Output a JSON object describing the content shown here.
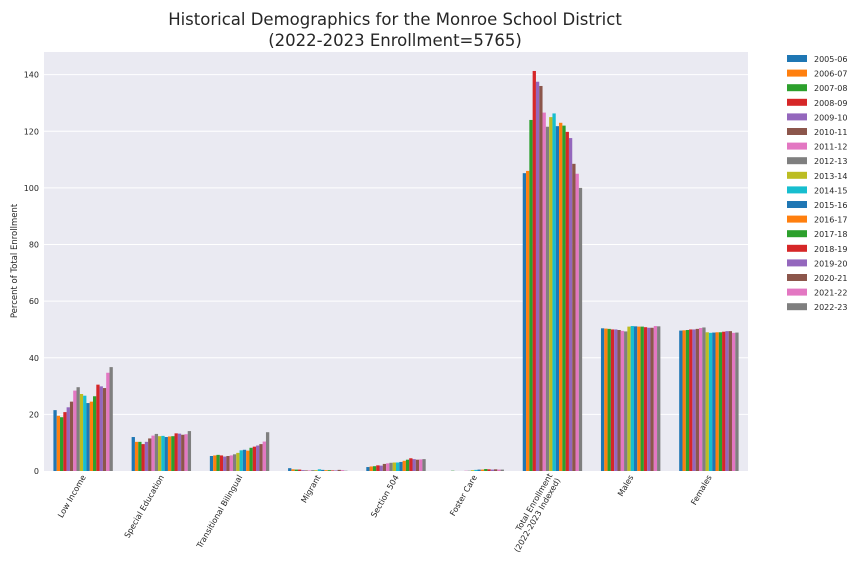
{
  "chart_data": {
    "type": "bar",
    "title_line1": "Historical Demographics for the Monroe School District",
    "title_line2": "(2022-2023 Enrollment=5765)",
    "xlabel": "",
    "ylabel": "Percent of Total Enrollment",
    "ylim": [
      0,
      148
    ],
    "yticks": [
      0,
      20,
      40,
      60,
      80,
      100,
      120,
      140
    ],
    "grid": true,
    "legend_position": "outside-right",
    "categories": [
      {
        "label": "Low Income"
      },
      {
        "label": "Special Education"
      },
      {
        "label": "Transitional Bilingual"
      },
      {
        "label": "Migrant"
      },
      {
        "label": "Section 504"
      },
      {
        "label": "Foster Care"
      },
      {
        "label": "Total Enrollment",
        "label2": "(2022-2023 Indexed)"
      },
      {
        "label": "Males"
      },
      {
        "label": "Females"
      }
    ],
    "series": [
      {
        "name": "2005-06",
        "color": "#1f77b4",
        "values": [
          21.5,
          12.0,
          5.3,
          1.0,
          1.4,
          0.0,
          105.2,
          50.4,
          49.6
        ]
      },
      {
        "name": "2006-07",
        "color": "#ff7f0e",
        "values": [
          19.5,
          10.3,
          5.5,
          0.6,
          1.6,
          0.0,
          106.0,
          50.3,
          49.7
        ]
      },
      {
        "name": "2007-08",
        "color": "#2ca02c",
        "values": [
          19.0,
          10.3,
          5.7,
          0.5,
          1.7,
          0.1,
          124.0,
          50.2,
          49.8
        ]
      },
      {
        "name": "2008-09",
        "color": "#d62728",
        "values": [
          20.8,
          9.5,
          5.5,
          0.5,
          2.0,
          0.0,
          141.3,
          50.0,
          50.0
        ]
      },
      {
        "name": "2009-10",
        "color": "#9467bd",
        "values": [
          22.5,
          10.3,
          5.1,
          0.3,
          1.9,
          0.0,
          137.5,
          50.0,
          50.0
        ]
      },
      {
        "name": "2010-11",
        "color": "#8c564b",
        "values": [
          24.5,
          11.5,
          5.3,
          0.2,
          2.5,
          0.0,
          136.0,
          49.8,
          50.2
        ]
      },
      {
        "name": "2011-12",
        "color": "#e377c2",
        "values": [
          28.4,
          12.5,
          5.5,
          0.2,
          2.7,
          0.1,
          126.6,
          49.5,
          50.5
        ]
      },
      {
        "name": "2012-13",
        "color": "#7f7f7f",
        "values": [
          29.6,
          13.1,
          5.9,
          0.3,
          2.9,
          0.1,
          121.6,
          49.3,
          50.7
        ]
      },
      {
        "name": "2013-14",
        "color": "#bcbd22",
        "values": [
          27.2,
          12.3,
          6.4,
          0.3,
          3.0,
          0.3,
          125.0,
          51.0,
          49.0
        ]
      },
      {
        "name": "2014-15",
        "color": "#17becf",
        "values": [
          26.6,
          12.4,
          7.3,
          0.6,
          3.0,
          0.4,
          126.3,
          51.2,
          48.8
        ]
      },
      {
        "name": "2015-16",
        "color": "#1f77b4",
        "values": [
          24.0,
          12.0,
          7.5,
          0.4,
          3.2,
          0.5,
          121.8,
          51.1,
          48.9
        ]
      },
      {
        "name": "2016-17",
        "color": "#ff7f0e",
        "values": [
          24.5,
          12.2,
          7.2,
          0.3,
          3.6,
          0.5,
          123.0,
          51.0,
          49.0
        ]
      },
      {
        "name": "2017-18",
        "color": "#2ca02c",
        "values": [
          26.4,
          12.3,
          8.2,
          0.3,
          4.0,
          0.7,
          122.0,
          51.0,
          49.0
        ]
      },
      {
        "name": "2018-19",
        "color": "#d62728",
        "values": [
          30.5,
          13.3,
          8.6,
          0.2,
          4.5,
          0.6,
          119.8,
          50.8,
          49.2
        ]
      },
      {
        "name": "2019-20",
        "color": "#9467bd",
        "values": [
          29.9,
          13.2,
          9.0,
          0.2,
          4.2,
          0.5,
          117.6,
          50.6,
          49.4
        ]
      },
      {
        "name": "2020-21",
        "color": "#8c564b",
        "values": [
          29.3,
          12.8,
          9.5,
          0.4,
          4.0,
          0.6,
          108.5,
          50.6,
          49.4
        ]
      },
      {
        "name": "2021-22",
        "color": "#e377c2",
        "values": [
          34.7,
          13.0,
          10.4,
          0.3,
          4.1,
          0.5,
          105.0,
          51.2,
          48.8
        ]
      },
      {
        "name": "2022-23",
        "color": "#7f7f7f",
        "values": [
          36.7,
          14.1,
          13.7,
          0.1,
          4.2,
          0.5,
          100.0,
          51.1,
          48.9
        ]
      }
    ]
  }
}
